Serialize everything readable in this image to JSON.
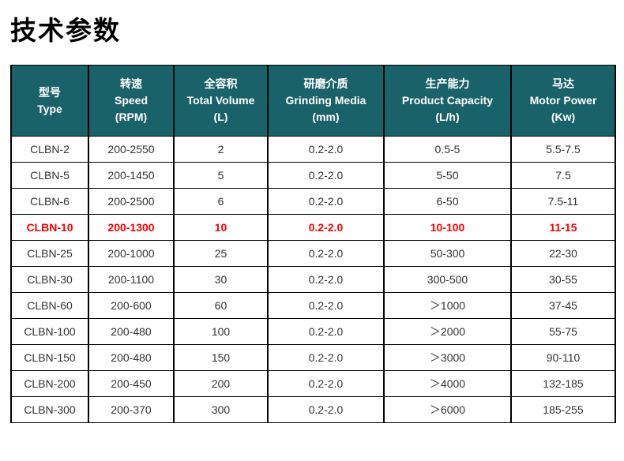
{
  "page": {
    "title": "技术参数"
  },
  "colors": {
    "header_bg": "#1a626a",
    "header_text": "#ffffff",
    "border": "#000000",
    "body_text": "#333333",
    "highlight_text": "#ff0000",
    "page_bg": "#ffffff"
  },
  "chart_data": {
    "type": "table",
    "title": "技术参数",
    "columns": [
      {
        "zh": "型号",
        "en": "Type",
        "unit": ""
      },
      {
        "zh": "转速",
        "en": "Speed",
        "unit": "(RPM)"
      },
      {
        "zh": "全容积",
        "en": "Total Volume",
        "unit": "(L)"
      },
      {
        "zh": "研磨介质",
        "en": "Grinding Media",
        "unit": "(mm)"
      },
      {
        "zh": "生产能力",
        "en": "Product Capacity",
        "unit": "(L/h)"
      },
      {
        "zh": "马达",
        "en": "Motor Power",
        "unit": "(Kw)"
      }
    ],
    "rows": [
      {
        "cells": [
          "CLBN-2",
          "200-2550",
          "2",
          "0.2-2.0",
          "0.5-5",
          "5.5-7.5"
        ],
        "highlight": false
      },
      {
        "cells": [
          "CLBN-5",
          "200-1450",
          "5",
          "0.2-2.0",
          "5-50",
          "7.5"
        ],
        "highlight": false
      },
      {
        "cells": [
          "CLBN-6",
          "200-2500",
          "6",
          "0.2-2.0",
          "6-50",
          "7.5-11"
        ],
        "highlight": false
      },
      {
        "cells": [
          "CLBN-10",
          "200-1300",
          "10",
          "0.2-2.0",
          "10-100",
          "11-15"
        ],
        "highlight": true
      },
      {
        "cells": [
          "CLBN-25",
          "200-1000",
          "25",
          "0.2-2.0",
          "50-300",
          "22-30"
        ],
        "highlight": false
      },
      {
        "cells": [
          "CLBN-30",
          "200-1100",
          "30",
          "0.2-2.0",
          "300-500",
          "30-55"
        ],
        "highlight": false
      },
      {
        "cells": [
          "CLBN-60",
          "200-600",
          "60",
          "0.2-2.0",
          "＞1000",
          "37-45"
        ],
        "highlight": false
      },
      {
        "cells": [
          "CLBN-100",
          "200-480",
          "100",
          "0.2-2.0",
          "＞2000",
          "55-75"
        ],
        "highlight": false
      },
      {
        "cells": [
          "CLBN-150",
          "200-480",
          "150",
          "0.2-2.0",
          "＞3000",
          "90-110"
        ],
        "highlight": false
      },
      {
        "cells": [
          "CLBN-200",
          "200-450",
          "200",
          "0.2-2.0",
          "＞4000",
          "132-185"
        ],
        "highlight": false
      },
      {
        "cells": [
          "CLBN-300",
          "200-370",
          "300",
          "0.2-2.0",
          "＞6000",
          "185-255"
        ],
        "highlight": false
      }
    ]
  }
}
